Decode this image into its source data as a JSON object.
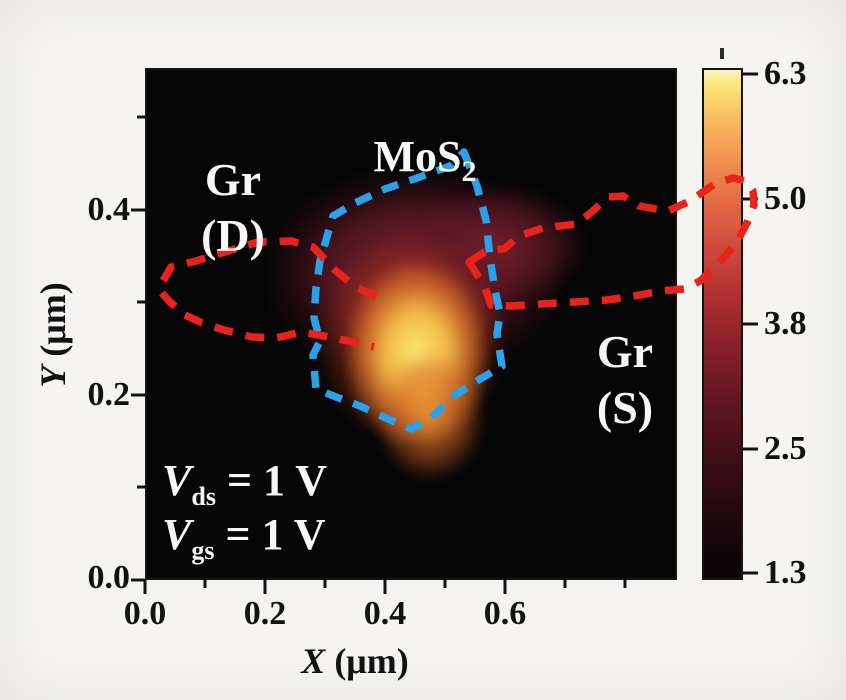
{
  "axes": {
    "x": {
      "letter": "X",
      "unit": " (μm)",
      "tick_labels": [
        "0.0",
        "0.2",
        "0.4",
        "0.6"
      ]
    },
    "y": {
      "letter": "Y",
      "unit": " (μm)",
      "tick_labels": [
        "0.4",
        "0.2",
        "0.0"
      ]
    }
  },
  "colorbar": {
    "tick_labels": [
      "6.3",
      "5.0",
      "3.8",
      "2.5",
      "1.3"
    ]
  },
  "labels": {
    "drain": {
      "line1": "Gr",
      "line2": "(D)"
    },
    "flake": {
      "main": "MoS",
      "sub": "2"
    },
    "source": {
      "line1": "Gr",
      "line2": "(S)"
    },
    "bias": [
      {
        "sym": "V",
        "sub": "ds",
        "rest": " = 1 V"
      },
      {
        "sym": "V",
        "sub": "gs",
        "rest": " = 1 V"
      }
    ]
  },
  "colors": {
    "mos2_outline": "#2aa2ea",
    "graphene_outline": "#e8231c",
    "hotspot_core": "#f9e86e",
    "map_background": "#060606",
    "figure_background": "#f5f4f1"
  },
  "overlays": {
    "mos2_polygon": "464,152 477,186 486,220 490,258 495,290 500,313 497,334 502,366 477,381 452,397 431,418 411,429 386,418 360,406 331,395 316,389 313,355 320,341 314,318 316,288 320,261 333,216 355,203 385,189 420,177 450,166",
    "gr_drain_path": "376,296 357,288 336,271 313,247 291,241 258,242 225,252 196,261 171,267 162,283 161,292 170,302 185,315 202,323 224,330 252,337 276,338 302,332 324,336 348,341 374,347",
    "gr_source_polygon": "469,262 488,250 504,249 519,236 543,228 577,224 594,210 608,197 623,196 639,206 668,211 690,201 716,183 733,178 746,181 753,191 754,205 747,223 738,240 727,254 712,270 700,281 684,289 661,291 634,296 607,300 575,302 541,304 511,306 491,305 485,288 478,276"
  },
  "chart_data": {
    "type": "heatmap",
    "title": "",
    "xlabel": "X (μm)",
    "ylabel": "Y (μm)",
    "x_tick_values": [
      0.0,
      0.2,
      0.4,
      0.6
    ],
    "y_tick_values": [
      0.0,
      0.2,
      0.4
    ],
    "x_range": [
      0.0,
      0.88
    ],
    "y_range": [
      0.0,
      0.55
    ],
    "colorbar": {
      "tick_values": [
        6.3,
        5.0,
        3.8,
        2.5,
        1.3
      ],
      "range": [
        1.3,
        6.3
      ],
      "colormap": "black-red-orange-yellow (hot)"
    },
    "background_value": 1.3,
    "features": [
      {
        "name": "photocurrent hotspot",
        "x": 0.45,
        "y": 0.25,
        "extent_x": 0.12,
        "extent_y": 0.18,
        "peak_value": 6.3
      },
      {
        "name": "diffuse photocurrent region",
        "x": 0.45,
        "y": 0.33,
        "extent_x": 0.35,
        "extent_y": 0.25,
        "value": 3.0
      }
    ],
    "region_outlines": [
      {
        "label": "MoS2",
        "style": "blue dashed",
        "area": "center of map"
      },
      {
        "label": "Gr (D)",
        "style": "red dashed",
        "area": "left side"
      },
      {
        "label": "Gr (S)",
        "style": "red dashed",
        "area": "right side, loop extends past map edge across colorbar"
      }
    ],
    "conditions": [
      "V_ds = 1 V",
      "V_gs = 1 V"
    ],
    "legend_position": "none",
    "grid": false
  }
}
